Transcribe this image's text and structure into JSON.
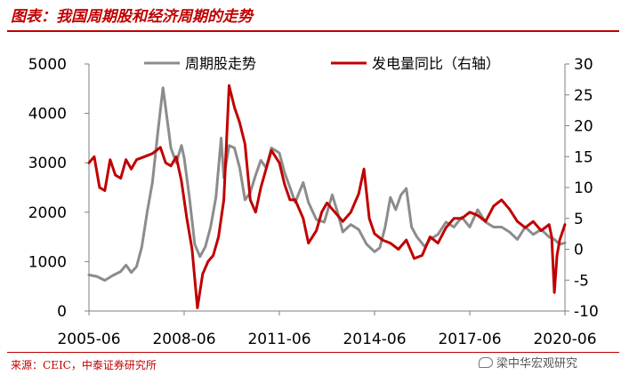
{
  "figure": {
    "title": "图表：我国周期股和经济周期的走势",
    "source": "来源：CEIC，中泰证券研究所",
    "watermark": "梁中华宏观研究"
  },
  "chart_data": {
    "type": "line",
    "x_labels": [
      "2005-06",
      "2008-06",
      "2011-06",
      "2014-06",
      "2017-06",
      "2020-06"
    ],
    "x_range": [
      "2005-06",
      "2020-06"
    ],
    "y_left": {
      "range": [
        0,
        5000
      ],
      "ticks": [
        0,
        1000,
        2000,
        3000,
        4000,
        5000
      ]
    },
    "y_right": {
      "range": [
        -10,
        30
      ],
      "ticks": [
        -10,
        -5,
        0,
        5,
        10,
        15,
        20,
        25,
        30
      ]
    },
    "legend_placement": "top",
    "grid": false,
    "series": [
      {
        "name": "周期股走势",
        "axis": "left",
        "color": "#8c8c8c",
        "points": [
          [
            "2005-06",
            730
          ],
          [
            "2005-09",
            700
          ],
          [
            "2005-12",
            620
          ],
          [
            "2006-03",
            720
          ],
          [
            "2006-06",
            800
          ],
          [
            "2006-08",
            930
          ],
          [
            "2006-10",
            780
          ],
          [
            "2006-12",
            900
          ],
          [
            "2007-02",
            1300
          ],
          [
            "2007-04",
            2000
          ],
          [
            "2007-06",
            2600
          ],
          [
            "2007-08",
            3600
          ],
          [
            "2007-10",
            4520
          ],
          [
            "2007-12",
            3700
          ],
          [
            "2008-01",
            3300
          ],
          [
            "2008-03",
            3000
          ],
          [
            "2008-05",
            3350
          ],
          [
            "2008-06",
            3100
          ],
          [
            "2008-08",
            2300
          ],
          [
            "2008-10",
            1350
          ],
          [
            "2008-12",
            1100
          ],
          [
            "2009-02",
            1300
          ],
          [
            "2009-04",
            1700
          ],
          [
            "2009-06",
            2300
          ],
          [
            "2009-08",
            3500
          ],
          [
            "2009-09",
            2700
          ],
          [
            "2009-11",
            3350
          ],
          [
            "2010-01",
            3300
          ],
          [
            "2010-03",
            2900
          ],
          [
            "2010-05",
            2250
          ],
          [
            "2010-07",
            2400
          ],
          [
            "2010-09",
            2750
          ],
          [
            "2010-11",
            3050
          ],
          [
            "2011-01",
            2900
          ],
          [
            "2011-03",
            3300
          ],
          [
            "2011-06",
            3200
          ],
          [
            "2011-08",
            2800
          ],
          [
            "2011-10",
            2500
          ],
          [
            "2011-12",
            2200
          ],
          [
            "2012-03",
            2600
          ],
          [
            "2012-05",
            2200
          ],
          [
            "2012-08",
            1850
          ],
          [
            "2012-11",
            1800
          ],
          [
            "2013-02",
            2350
          ],
          [
            "2013-04",
            2000
          ],
          [
            "2013-06",
            1600
          ],
          [
            "2013-09",
            1750
          ],
          [
            "2013-12",
            1650
          ],
          [
            "2014-03",
            1350
          ],
          [
            "2014-06",
            1200
          ],
          [
            "2014-08",
            1280
          ],
          [
            "2014-10",
            1700
          ],
          [
            "2014-12",
            2300
          ],
          [
            "2015-02",
            2050
          ],
          [
            "2015-04",
            2350
          ],
          [
            "2015-06",
            2480
          ],
          [
            "2015-08",
            1700
          ],
          [
            "2015-10",
            1500
          ],
          [
            "2016-01",
            1300
          ],
          [
            "2016-03",
            1450
          ],
          [
            "2016-06",
            1550
          ],
          [
            "2016-09",
            1800
          ],
          [
            "2016-12",
            1700
          ],
          [
            "2017-03",
            1900
          ],
          [
            "2017-06",
            1700
          ],
          [
            "2017-09",
            2050
          ],
          [
            "2017-12",
            1800
          ],
          [
            "2018-03",
            1700
          ],
          [
            "2018-06",
            1700
          ],
          [
            "2018-09",
            1600
          ],
          [
            "2018-12",
            1450
          ],
          [
            "2019-03",
            1700
          ],
          [
            "2019-06",
            1550
          ],
          [
            "2019-09",
            1650
          ],
          [
            "2019-12",
            1500
          ],
          [
            "2020-02",
            1450
          ],
          [
            "2020-04",
            1350
          ],
          [
            "2020-06",
            1380
          ]
        ]
      },
      {
        "name": "发电量同比（右轴）",
        "axis": "right",
        "color": "#c00000",
        "points": [
          [
            "2005-06",
            14
          ],
          [
            "2005-08",
            15
          ],
          [
            "2005-10",
            10
          ],
          [
            "2005-12",
            9.5
          ],
          [
            "2006-02",
            14.5
          ],
          [
            "2006-04",
            12
          ],
          [
            "2006-06",
            11.5
          ],
          [
            "2006-08",
            14.5
          ],
          [
            "2006-10",
            13
          ],
          [
            "2006-12",
            14.5
          ],
          [
            "2007-03",
            15
          ],
          [
            "2007-06",
            15.5
          ],
          [
            "2007-09",
            16.5
          ],
          [
            "2007-11",
            14
          ],
          [
            "2008-01",
            13.5
          ],
          [
            "2008-03",
            15
          ],
          [
            "2008-05",
            11
          ],
          [
            "2008-07",
            5
          ],
          [
            "2008-09",
            0
          ],
          [
            "2008-11",
            -9.5
          ],
          [
            "2009-01",
            -4
          ],
          [
            "2009-03",
            -2
          ],
          [
            "2009-05",
            -1
          ],
          [
            "2009-07",
            2
          ],
          [
            "2009-09",
            8
          ],
          [
            "2009-11",
            26.5
          ],
          [
            "2010-01",
            23
          ],
          [
            "2010-03",
            20.5
          ],
          [
            "2010-05",
            17
          ],
          [
            "2010-07",
            8
          ],
          [
            "2010-09",
            6
          ],
          [
            "2010-11",
            10
          ],
          [
            "2011-01",
            13
          ],
          [
            "2011-03",
            16
          ],
          [
            "2011-06",
            14
          ],
          [
            "2011-08",
            10.5
          ],
          [
            "2011-10",
            8
          ],
          [
            "2011-12",
            8
          ],
          [
            "2012-03",
            5
          ],
          [
            "2012-05",
            1
          ],
          [
            "2012-08",
            3
          ],
          [
            "2012-10",
            6
          ],
          [
            "2012-12",
            7.5
          ],
          [
            "2013-03",
            6
          ],
          [
            "2013-06",
            4.5
          ],
          [
            "2013-09",
            6
          ],
          [
            "2013-12",
            9
          ],
          [
            "2014-02",
            13
          ],
          [
            "2014-04",
            5
          ],
          [
            "2014-06",
            2.5
          ],
          [
            "2014-09",
            1.5
          ],
          [
            "2014-12",
            1
          ],
          [
            "2015-03",
            0
          ],
          [
            "2015-06",
            1.5
          ],
          [
            "2015-09",
            -1.5
          ],
          [
            "2015-12",
            -1
          ],
          [
            "2016-03",
            2
          ],
          [
            "2016-06",
            1
          ],
          [
            "2016-09",
            3.5
          ],
          [
            "2016-12",
            5
          ],
          [
            "2017-03",
            5
          ],
          [
            "2017-06",
            6
          ],
          [
            "2017-09",
            5.5
          ],
          [
            "2017-12",
            4.5
          ],
          [
            "2018-03",
            7
          ],
          [
            "2018-06",
            8
          ],
          [
            "2018-09",
            6.5
          ],
          [
            "2018-12",
            4.5
          ],
          [
            "2019-03",
            3.5
          ],
          [
            "2019-06",
            4.5
          ],
          [
            "2019-09",
            3
          ],
          [
            "2019-12",
            4
          ],
          [
            "2020-01",
            2
          ],
          [
            "2020-02",
            -7
          ],
          [
            "2020-03",
            -1
          ],
          [
            "2020-04",
            1.5
          ],
          [
            "2020-06",
            4
          ]
        ]
      }
    ]
  }
}
